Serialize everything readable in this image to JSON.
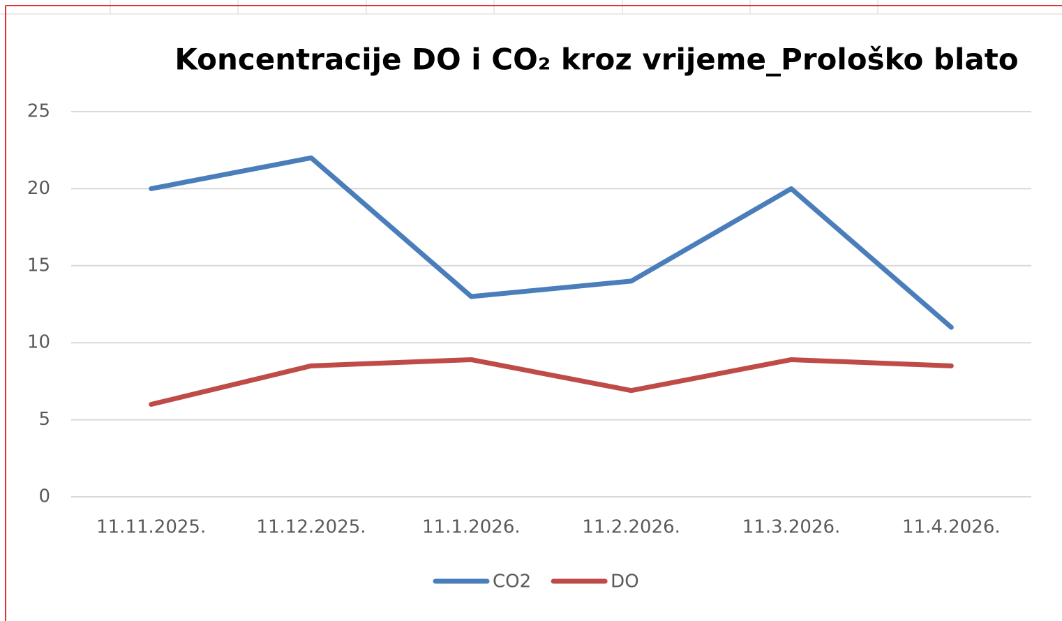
{
  "chart_data": {
    "type": "line",
    "title": "Koncentracije DO i CO₂ kroz vrijeme_Prološko blato",
    "categories": [
      "11.11.2025.",
      "11.12.2025.",
      "11.1.2026.",
      "11.2.2026.",
      "11.3.2026.",
      "11.4.2026."
    ],
    "series": [
      {
        "name": "CO2",
        "color": "#4a7ebb",
        "values": [
          20,
          22,
          13,
          14,
          20,
          11
        ]
      },
      {
        "name": "DO",
        "color": "#be4b48",
        "values": [
          6,
          8.5,
          8.9,
          6.9,
          8.9,
          8.5
        ]
      }
    ],
    "ylim": [
      0,
      25
    ],
    "yticks": [
      0,
      5,
      10,
      15,
      20,
      25
    ],
    "grid": true,
    "legend": "bottom"
  }
}
